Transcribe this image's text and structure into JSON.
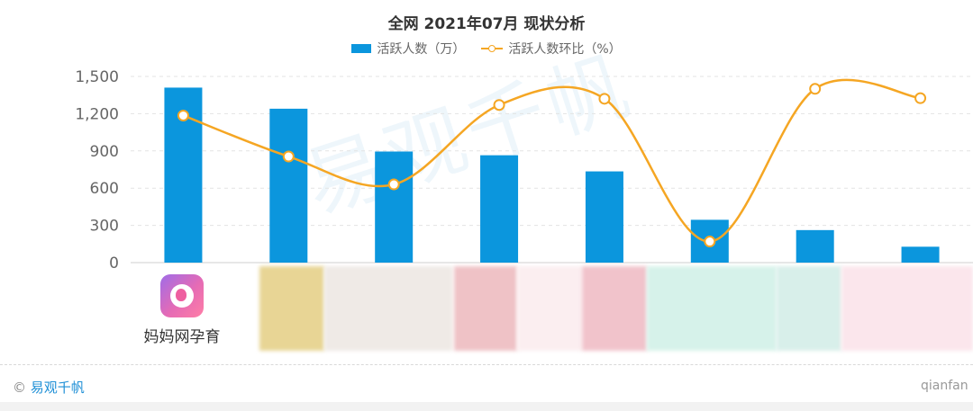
{
  "title": "全网 2021年07月 现状分析",
  "legend": {
    "bar_label": "活跃人数（万）",
    "line_label": "活跃人数环比（%）"
  },
  "colors": {
    "bar": "#0b96dd",
    "line": "#f5a623"
  },
  "chart_data": {
    "type": "bar",
    "title": "全网 2021年07月 现状分析",
    "categories": [
      "妈妈网孕育",
      "",
      "",
      "",
      "",
      "",
      "",
      ""
    ],
    "series": [
      {
        "name": "活跃人数（万）",
        "type": "bar",
        "values": [
          1410,
          1240,
          895,
          865,
          735,
          345,
          262,
          128
        ]
      },
      {
        "name": "活跃人数环比（%）",
        "type": "line",
        "values": [
          1185,
          855,
          630,
          1270,
          1320,
          170,
          1400,
          1325
        ]
      }
    ],
    "yticks": [
      "1,500",
      "1,200",
      "900",
      "600",
      "300",
      "0"
    ],
    "ylim": [
      0,
      1500
    ],
    "grid": true,
    "legend_position": "top-center"
  },
  "first_app": {
    "name": "妈妈网孕育",
    "icon": "baby-fetus-icon"
  },
  "watermark": "易观千帆",
  "footer": {
    "copyright_symbol": "©",
    "brand": "易观千帆",
    "site": "qianfan"
  }
}
